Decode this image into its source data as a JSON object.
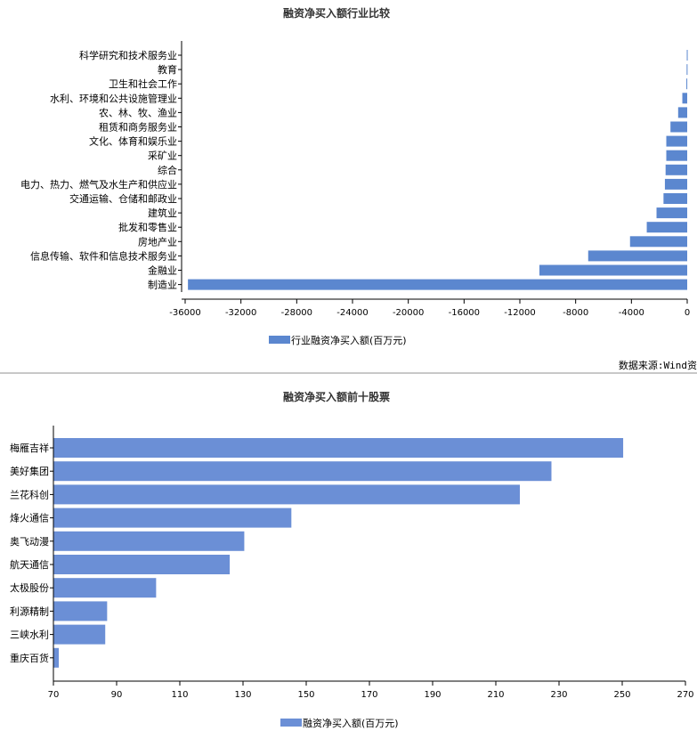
{
  "chart_data": [
    {
      "type": "bar",
      "orientation": "horizontal",
      "title": "融资净买入额行业比较",
      "categories": [
        "科学研究和技术服务业",
        "教育",
        "卫生和社会工作",
        "水利、环境和公共设施管理业",
        "农、林、牧、渔业",
        "租赁和商务服务业",
        "文化、体育和娱乐业",
        "采矿业",
        "综合",
        "电力、热力、燃气及水生产和供应业",
        "交通运输、仓储和邮政业",
        "建筑业",
        "批发和零售业",
        "房地产业",
        "信息传输、软件和信息技术服务业",
        "金融业",
        "制造业"
      ],
      "series": [
        {
          "name": "行业融资净买入额(百万元)",
          "values": [
            -30,
            -40,
            -60,
            -350,
            -650,
            -1200,
            -1500,
            -1500,
            -1550,
            -1600,
            -1700,
            -2200,
            -2900,
            -4100,
            -7100,
            -10600,
            -35800
          ]
        }
      ],
      "xlim": [
        -36000,
        0
      ],
      "xticks": [
        "-36000",
        "-32000",
        "-28000",
        "-24000",
        "-20000",
        "-16000",
        "-12000",
        "-8000",
        "-4000",
        "0"
      ],
      "legend_position": "bottom",
      "color": "#5b87cf",
      "grid": false
    },
    {
      "type": "bar",
      "orientation": "horizontal",
      "title": "融资净买入额前十股票",
      "categories": [
        "梅雁吉祥",
        "美好集团",
        "兰花科创",
        "烽火通信",
        "奥飞动漫",
        "航天通信",
        "太极股份",
        "利源精制",
        "三峡水利",
        "重庆百货"
      ],
      "series": [
        {
          "name": "融资净买入额(百万元)",
          "values": [
            250.3,
            227.6,
            217.6,
            145.3,
            130.4,
            125.8,
            102.5,
            87.0,
            86.4,
            71.7
          ]
        }
      ],
      "xlim": [
        70,
        270
      ],
      "xticks": [
        "70",
        "90",
        "110",
        "130",
        "150",
        "170",
        "190",
        "210",
        "230",
        "250",
        "270"
      ],
      "legend_position": "bottom",
      "color": "#6b8fd6",
      "grid": false
    }
  ],
  "source_text": "数据来源:Wind资"
}
